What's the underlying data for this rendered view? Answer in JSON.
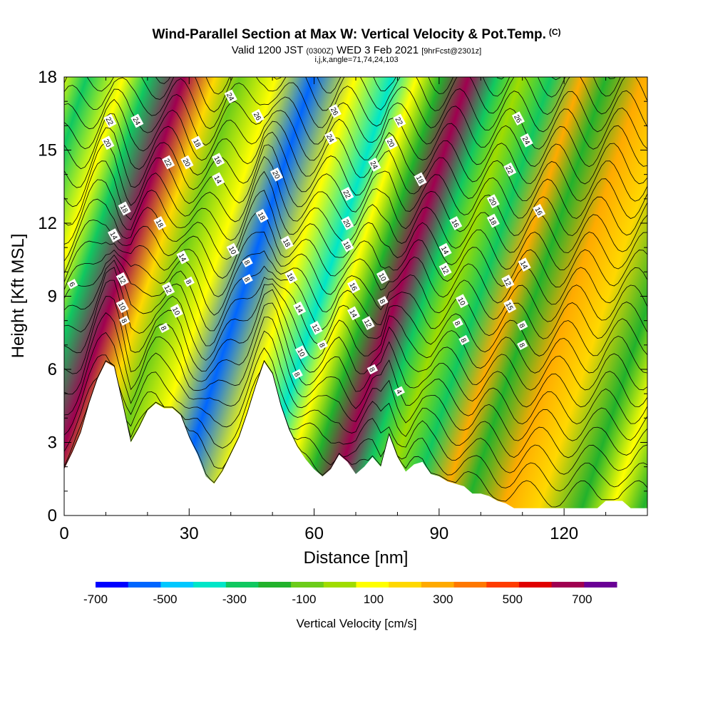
{
  "title": {
    "main": "Wind-Parallel Section at Max W: Vertical Velocity & Pot.Temp.",
    "copyright": "(C)",
    "valid_prefix": "Valid 1200 JST",
    "valid_utc": "(0300Z)",
    "valid_date": "WED 3 Feb 2021",
    "forecast": "[9hrFcst@2301z]",
    "indices": "i,j,k,angle=71,74,24,103"
  },
  "chart_data": {
    "type": "heatmap",
    "xlabel": "Distance [nm]",
    "ylabel": "Height [Kft MSL]",
    "xlim": [
      0,
      140
    ],
    "ylim": [
      0,
      18
    ],
    "x_ticks": [
      0,
      30,
      60,
      90,
      120
    ],
    "y_ticks": [
      0,
      3,
      6,
      9,
      12,
      15,
      18
    ],
    "colorbar": {
      "label": "Vertical Velocity [cm/s]",
      "tick_labels": [
        -700,
        -500,
        -300,
        -100,
        100,
        300,
        500,
        700
      ],
      "bins": [
        -700,
        -600,
        -500,
        -400,
        -300,
        -200,
        -100,
        0,
        100,
        200,
        300,
        400,
        500,
        600,
        700,
        800
      ],
      "colors": [
        "#0000ff",
        "#0066ff",
        "#00c8ff",
        "#00e6c8",
        "#10c860",
        "#22b22c",
        "#6ccc1a",
        "#a0dc00",
        "#ffff00",
        "#ffd800",
        "#ffaa00",
        "#ff7800",
        "#ff3c00",
        "#e00000",
        "#a00050",
        "#6a0096"
      ]
    },
    "vertical_velocity_bands": [
      {
        "x": 1,
        "w": 40
      },
      {
        "x": 5,
        "w": 60
      },
      {
        "x": 8.5,
        "w": 120
      },
      {
        "x": 13,
        "w": -250
      },
      {
        "x": 19,
        "w": 160
      },
      {
        "x": 23,
        "w": -220
      },
      {
        "x": 29,
        "w": 700
      },
      {
        "x": 34,
        "w": 200
      },
      {
        "x": 38,
        "w": -80
      },
      {
        "x": 44,
        "w": 180
      },
      {
        "x": 50,
        "w": -520
      },
      {
        "x": 57,
        "w": 150
      },
      {
        "x": 63,
        "w": -320
      },
      {
        "x": 67,
        "w": 100
      },
      {
        "x": 71,
        "w": -200
      },
      {
        "x": 75.5,
        "w": 700
      },
      {
        "x": 80,
        "w": -300
      },
      {
        "x": 84,
        "w": 60
      },
      {
        "x": 89,
        "w": -240
      },
      {
        "x": 94,
        "w": 320
      },
      {
        "x": 98,
        "w": -180
      },
      {
        "x": 104,
        "w": 340
      },
      {
        "x": 110,
        "w": 260
      },
      {
        "x": 117,
        "w": -120
      },
      {
        "x": 122,
        "w": 180
      },
      {
        "x": 127,
        "w": -150
      },
      {
        "x": 131,
        "w": 90
      },
      {
        "x": 136,
        "w": -60
      }
    ],
    "terrain_height_kft": [
      [
        0,
        1.9
      ],
      [
        2,
        2.6
      ],
      [
        4,
        3.4
      ],
      [
        6,
        4.6
      ],
      [
        8,
        5.6
      ],
      [
        10,
        6.3
      ],
      [
        12,
        6.1
      ],
      [
        14,
        4.6
      ],
      [
        16,
        3.0
      ],
      [
        18,
        3.6
      ],
      [
        20,
        4.3
      ],
      [
        22,
        4.6
      ],
      [
        24,
        4.4
      ],
      [
        26,
        4.4
      ],
      [
        28,
        4.1
      ],
      [
        30,
        3.2
      ],
      [
        32,
        2.5
      ],
      [
        34,
        1.6
      ],
      [
        36,
        1.3
      ],
      [
        38,
        1.8
      ],
      [
        40,
        2.5
      ],
      [
        42,
        3.2
      ],
      [
        44,
        4.2
      ],
      [
        46,
        5.3
      ],
      [
        48,
        6.3
      ],
      [
        50,
        5.8
      ],
      [
        52,
        4.5
      ],
      [
        54,
        3.5
      ],
      [
        56,
        2.8
      ],
      [
        58,
        2.3
      ],
      [
        60,
        1.9
      ],
      [
        62,
        1.6
      ],
      [
        64,
        1.9
      ],
      [
        66,
        2.5
      ],
      [
        68,
        2.2
      ],
      [
        70,
        1.7
      ],
      [
        72,
        2.0
      ],
      [
        74,
        2.4
      ],
      [
        76,
        2.0
      ],
      [
        78,
        3.3
      ],
      [
        80,
        2.4
      ],
      [
        82,
        1.8
      ],
      [
        84,
        2.1
      ],
      [
        86,
        2.2
      ],
      [
        88,
        1.7
      ],
      [
        90,
        1.6
      ],
      [
        92,
        1.4
      ],
      [
        94,
        1.3
      ],
      [
        96,
        1.2
      ],
      [
        98,
        0.9
      ],
      [
        100,
        0.9
      ],
      [
        102,
        0.8
      ],
      [
        104,
        0.6
      ],
      [
        106,
        0.5
      ],
      [
        108,
        0.3
      ],
      [
        110,
        0.3
      ],
      [
        114,
        0.3
      ],
      [
        120,
        0.3
      ],
      [
        126,
        0.3
      ],
      [
        128,
        0.3
      ],
      [
        130,
        0.6
      ],
      [
        134,
        0.6
      ],
      [
        136,
        0.3
      ],
      [
        140,
        0.3
      ]
    ],
    "theta_contour_labels": [
      {
        "text": "6",
        "x": 2,
        "y": 9.5
      },
      {
        "text": "22",
        "x": 11,
        "y": 16.2
      },
      {
        "text": "20",
        "x": 10.5,
        "y": 15.3
      },
      {
        "text": "18",
        "x": 14.5,
        "y": 12.6
      },
      {
        "text": "14",
        "x": 12,
        "y": 11.5
      },
      {
        "text": "12",
        "x": 14,
        "y": 9.7
      },
      {
        "text": "10",
        "x": 14,
        "y": 8.6
      },
      {
        "text": "8",
        "x": 14.5,
        "y": 8.0
      },
      {
        "text": "24",
        "x": 17.5,
        "y": 16.2
      },
      {
        "text": "18",
        "x": 23,
        "y": 12.0
      },
      {
        "text": "22",
        "x": 25,
        "y": 14.5
      },
      {
        "text": "12",
        "x": 25,
        "y": 9.3
      },
      {
        "text": "8",
        "x": 24,
        "y": 7.7
      },
      {
        "text": "10",
        "x": 27,
        "y": 8.4
      },
      {
        "text": "14",
        "x": 28.5,
        "y": 10.6
      },
      {
        "text": "8",
        "x": 30,
        "y": 9.6
      },
      {
        "text": "20",
        "x": 29.5,
        "y": 14.5
      },
      {
        "text": "18",
        "x": 32,
        "y": 15.3
      },
      {
        "text": "16",
        "x": 37,
        "y": 14.6
      },
      {
        "text": "14",
        "x": 37,
        "y": 13.8
      },
      {
        "text": "24",
        "x": 40,
        "y": 17.2
      },
      {
        "text": "10",
        "x": 40.5,
        "y": 10.9
      },
      {
        "text": "8",
        "x": 44,
        "y": 10.4
      },
      {
        "text": "8",
        "x": 44,
        "y": 9.7
      },
      {
        "text": "26",
        "x": 46.5,
        "y": 16.4
      },
      {
        "text": "18",
        "x": 47.5,
        "y": 12.3
      },
      {
        "text": "20",
        "x": 51,
        "y": 14.0
      },
      {
        "text": "18",
        "x": 53.5,
        "y": 11.2
      },
      {
        "text": "16",
        "x": 54.5,
        "y": 9.8
      },
      {
        "text": "14",
        "x": 56.5,
        "y": 8.5
      },
      {
        "text": "10",
        "x": 57,
        "y": 6.7
      },
      {
        "text": "8",
        "x": 56,
        "y": 5.8
      },
      {
        "text": "12",
        "x": 60.5,
        "y": 7.7
      },
      {
        "text": "8",
        "x": 62,
        "y": 7.0
      },
      {
        "text": "26",
        "x": 65,
        "y": 16.6
      },
      {
        "text": "24",
        "x": 64,
        "y": 15.5
      },
      {
        "text": "22",
        "x": 68,
        "y": 13.2
      },
      {
        "text": "20",
        "x": 68,
        "y": 12.0
      },
      {
        "text": "18",
        "x": 68,
        "y": 11.1
      },
      {
        "text": "16",
        "x": 69.5,
        "y": 9.4
      },
      {
        "text": "14",
        "x": 69.5,
        "y": 8.3
      },
      {
        "text": "12",
        "x": 73,
        "y": 7.9
      },
      {
        "text": "8",
        "x": 74,
        "y": 6.0
      },
      {
        "text": "10",
        "x": 76.5,
        "y": 9.8
      },
      {
        "text": "8",
        "x": 76.5,
        "y": 8.8
      },
      {
        "text": "24",
        "x": 74.5,
        "y": 14.4
      },
      {
        "text": "20",
        "x": 78.5,
        "y": 15.3
      },
      {
        "text": "22",
        "x": 80.5,
        "y": 16.2
      },
      {
        "text": "4",
        "x": 80.5,
        "y": 5.1
      },
      {
        "text": "18",
        "x": 85.5,
        "y": 13.8
      },
      {
        "text": "16",
        "x": 94,
        "y": 12.0
      },
      {
        "text": "14",
        "x": 91.5,
        "y": 10.9
      },
      {
        "text": "12",
        "x": 91.5,
        "y": 10.1
      },
      {
        "text": "10",
        "x": 95.5,
        "y": 8.8
      },
      {
        "text": "8",
        "x": 94.5,
        "y": 7.9
      },
      {
        "text": "8",
        "x": 96,
        "y": 7.2
      },
      {
        "text": "20",
        "x": 103,
        "y": 12.9
      },
      {
        "text": "18",
        "x": 103,
        "y": 12.1
      },
      {
        "text": "22",
        "x": 107,
        "y": 14.2
      },
      {
        "text": "26",
        "x": 109,
        "y": 16.3
      },
      {
        "text": "24",
        "x": 111,
        "y": 15.4
      },
      {
        "text": "16",
        "x": 114,
        "y": 12.5
      },
      {
        "text": "12",
        "x": 106.5,
        "y": 9.6
      },
      {
        "text": "14",
        "x": 110.5,
        "y": 10.3
      },
      {
        "text": "15",
        "x": 107,
        "y": 8.6
      },
      {
        "text": "8",
        "x": 110,
        "y": 7.8
      },
      {
        "text": "8",
        "x": 110,
        "y": 7.0
      }
    ]
  }
}
